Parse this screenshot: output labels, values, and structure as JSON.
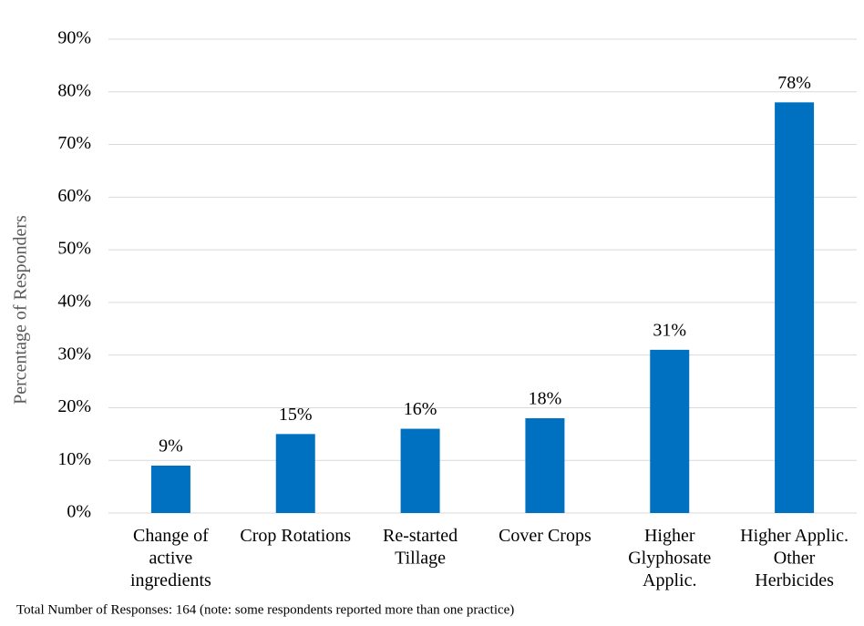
{
  "chart_data": {
    "type": "bar",
    "y_label": "Percentage of Responders",
    "note": "Total Number of Responses: 164 (note: some respondents reported more than one practice)",
    "categories": [
      "Change of active ingredients",
      "Crop Rotations",
      "Re-started Tillage",
      "Cover Crops",
      "Higher Glyphosate Applic.",
      "Higher Applic. Other Herbicides"
    ],
    "values": [
      9,
      15,
      16,
      18,
      31,
      78
    ],
    "value_labels": [
      "9%",
      "15%",
      "16%",
      "18%",
      "31%",
      "78%"
    ],
    "color": "#0070c0",
    "ylim": [
      0,
      90
    ],
    "yticks": [
      {
        "value": 0,
        "label": "0%"
      },
      {
        "value": 10,
        "label": "10%"
      },
      {
        "value": 20,
        "label": "20%"
      },
      {
        "value": 30,
        "label": "30%"
      },
      {
        "value": 40,
        "label": "40%"
      },
      {
        "value": 50,
        "label": "50%"
      },
      {
        "value": 60,
        "label": "60%"
      },
      {
        "value": 70,
        "label": "70%"
      },
      {
        "value": 80,
        "label": "80%"
      },
      {
        "value": 90,
        "label": "90%"
      }
    ],
    "grid": true
  }
}
